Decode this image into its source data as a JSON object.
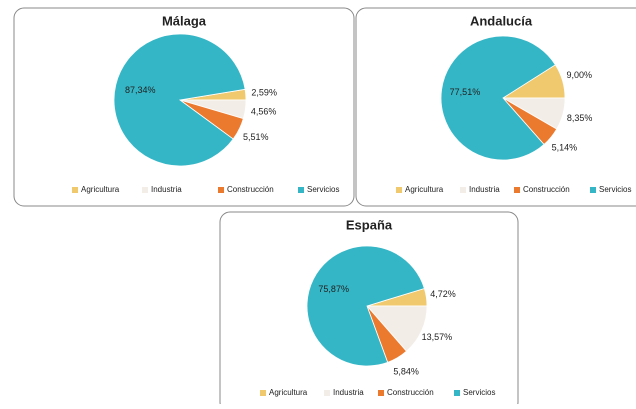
{
  "chart_data": [
    {
      "type": "pie",
      "title": "Málaga",
      "categories": [
        "Agricultura",
        "Industria",
        "Construcción",
        "Servicios"
      ],
      "values": [
        2.59,
        4.56,
        5.51,
        87.34
      ],
      "value_labels": [
        "2,59%",
        "4,56%",
        "5,51%",
        "87,34%"
      ],
      "colors": [
        "#f0c86e",
        "#f2ede6",
        "#ec7a2e",
        "#35b6c6"
      ]
    },
    {
      "type": "pie",
      "title": "Andalucía",
      "categories": [
        "Agricultura",
        "Industria",
        "Construcción",
        "Servicios"
      ],
      "values": [
        9.0,
        8.35,
        5.14,
        77.51
      ],
      "value_labels": [
        "9,00%",
        "8,35%",
        "5,14%",
        "77,51%"
      ],
      "colors": [
        "#f0c86e",
        "#f2ede6",
        "#ec7a2e",
        "#35b6c6"
      ]
    },
    {
      "type": "pie",
      "title": "España",
      "categories": [
        "Agricultura",
        "Industria",
        "Construcción",
        "Servicios"
      ],
      "values": [
        4.72,
        13.57,
        5.84,
        75.87
      ],
      "value_labels": [
        "4,72%",
        "13,57%",
        "5,84%",
        "75,87%"
      ],
      "colors": [
        "#f0c86e",
        "#f2ede6",
        "#ec7a2e",
        "#35b6c6"
      ]
    }
  ]
}
